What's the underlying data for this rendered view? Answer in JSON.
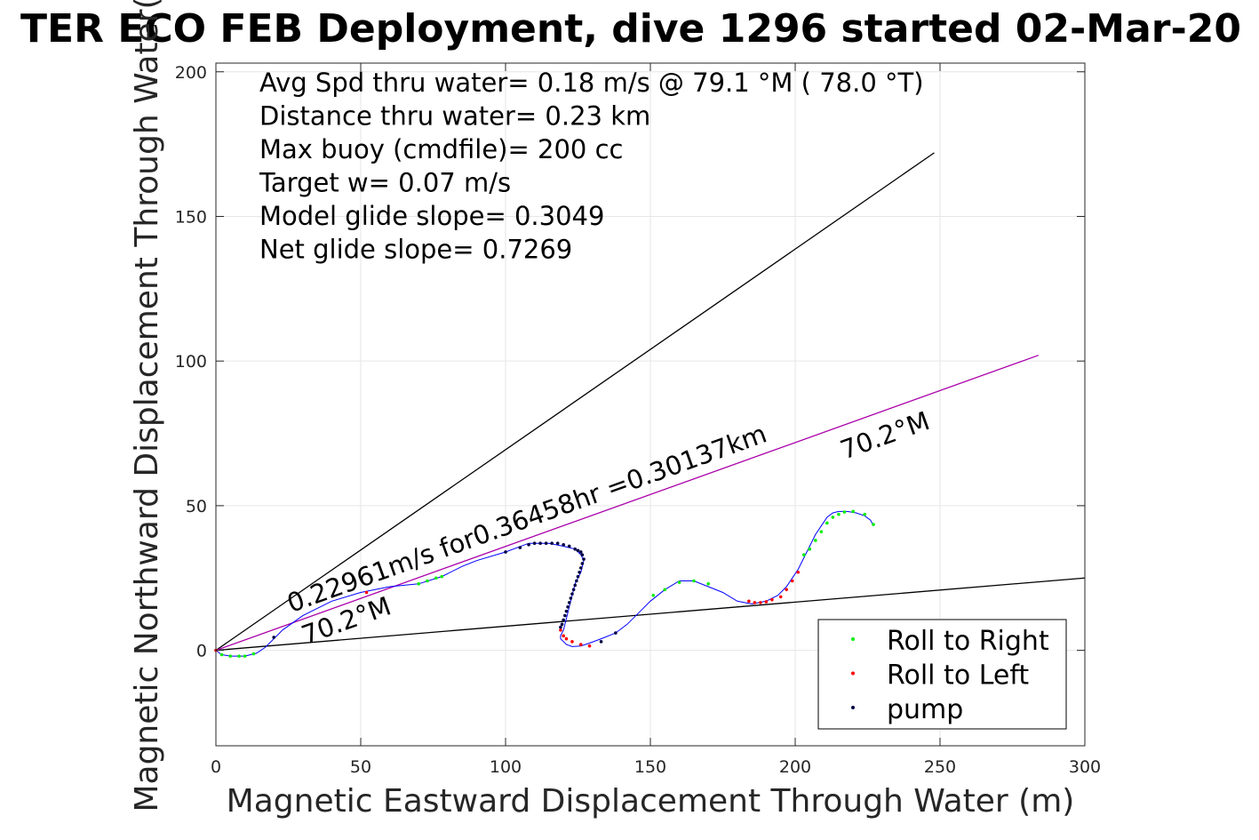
{
  "chart_data": {
    "type": "scatter",
    "title": "TER ECO FEB Deployment, dive 1296 started 02-Mar-20",
    "xlabel": "Magnetic Eastward Displacement Through Water (m)",
    "ylabel": "Magnetic Northward Displacement Through Water(",
    "xlim": [
      0,
      300
    ],
    "ylim": [
      -33,
      203
    ],
    "xticks": [
      0,
      50,
      100,
      150,
      200,
      250,
      300
    ],
    "yticks": [
      0,
      50,
      100,
      150,
      200
    ],
    "grid": true,
    "legend_position": "bottom-right",
    "info_lines": [
      "Avg Spd thru water=  0.18 m/s @  79.1 °M ( 78.0 °T)",
      "Distance thru water=  0.23 km",
      "Max buoy (cmdfile)= 200 cc",
      "Target w= 0.07 m/s",
      "Model glide slope= 0.3049",
      "Net glide slope= 0.7269"
    ],
    "annotations": [
      {
        "text": "0.22961m/s for0.36458hr =0.30137km",
        "x": 26,
        "y": 13,
        "angle": 19.8
      },
      {
        "text": "70.2°M",
        "x": 31,
        "y": 2,
        "angle": 19.8
      },
      {
        "text": "70.2°M",
        "x": 217,
        "y": 66,
        "angle": 19.8
      }
    ],
    "reference_lines": [
      {
        "name": "upper bound",
        "color": "#000000",
        "x": [
          0,
          248
        ],
        "y": [
          0,
          172
        ]
      },
      {
        "name": "lower bound",
        "color": "#000000",
        "x": [
          0,
          300
        ],
        "y": [
          0,
          25
        ]
      },
      {
        "name": "heading",
        "color": "#aa00aa",
        "x": [
          0,
          284
        ],
        "y": [
          0,
          102
        ]
      }
    ],
    "track": {
      "color": "#0000ff",
      "x": [
        0,
        2,
        5,
        10,
        14,
        17,
        20,
        23,
        30,
        40,
        50,
        60,
        70,
        78,
        85,
        90,
        100,
        108,
        115,
        120,
        124,
        126,
        127,
        126,
        124,
        123,
        122,
        121,
        120,
        119,
        119,
        120,
        121,
        123,
        126,
        129,
        133,
        138,
        142,
        146,
        150,
        155,
        160,
        165,
        170,
        175,
        180,
        185,
        190,
        194,
        197,
        199,
        201,
        203,
        205,
        207,
        209,
        211,
        213,
        215,
        218,
        221,
        224,
        226,
        227
      ],
      "y": [
        0,
        -1.5,
        -2,
        -2,
        -1,
        1,
        4,
        7,
        12,
        17,
        20,
        22,
        23,
        25.5,
        29,
        31,
        34,
        37,
        37,
        36,
        35,
        33,
        31,
        27,
        23,
        19,
        15,
        11,
        7,
        5,
        4,
        3,
        2,
        1.3,
        1.5,
        2.5,
        4,
        6,
        9,
        13,
        17,
        21,
        24,
        24,
        22,
        20,
        17,
        16,
        17,
        19,
        22,
        25,
        28,
        32,
        36,
        40,
        43,
        46,
        47.5,
        48,
        48,
        47.5,
        46.5,
        45,
        43
      ]
    },
    "series": [
      {
        "name": "Roll to Right",
        "color": "#00ee00",
        "x": [
          2,
          5,
          8,
          10,
          13,
          70,
          73,
          76,
          78,
          151,
          155,
          160,
          165,
          170,
          203,
          205,
          207,
          209,
          211,
          213,
          215,
          217,
          220,
          224,
          227
        ],
        "y": [
          -1.5,
          -2,
          -2,
          -2,
          -1.2,
          23,
          24,
          25,
          25.5,
          19,
          21,
          23.5,
          24,
          23,
          33,
          35,
          38,
          41,
          44,
          46,
          47,
          47.8,
          48,
          47,
          43.5
        ]
      },
      {
        "name": "Roll to Left",
        "color": "#ff0000",
        "x": [
          0,
          52,
          119,
          120,
          121,
          123,
          126,
          129,
          184,
          186,
          188,
          190,
          192,
          195,
          197,
          199,
          201
        ],
        "y": [
          0,
          20,
          7,
          5,
          4,
          3,
          2,
          1.5,
          17,
          16.5,
          16.5,
          16.8,
          17.5,
          18.5,
          21,
          24,
          27
        ]
      },
      {
        "name": "pump",
        "color": "#000044",
        "x": [
          20,
          100,
          105,
          108,
          110,
          112,
          114,
          116,
          118,
          120,
          122,
          124,
          125,
          126,
          126.5,
          127,
          126.5,
          126,
          125.5,
          125,
          124.5,
          124,
          123.5,
          123,
          122.5,
          122,
          121.5,
          121,
          120.5,
          120,
          119.5,
          119,
          133,
          138
        ],
        "y": [
          4.5,
          34,
          35.5,
          36.5,
          37,
          37,
          37,
          37,
          37,
          36.5,
          36,
          35,
          34.5,
          34,
          33,
          31.5,
          30,
          28.5,
          27,
          25.5,
          24,
          22.5,
          21,
          19.5,
          18,
          16.5,
          15,
          13.5,
          12,
          10.5,
          9,
          8,
          3,
          6
        ]
      }
    ]
  }
}
